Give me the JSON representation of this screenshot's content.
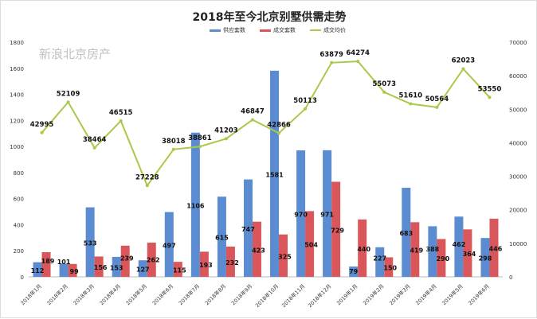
{
  "chart_data": {
    "type": "bar+line",
    "title": "2018年至今北京别墅供需走势",
    "categories": [
      "2018年1月",
      "2018年2月",
      "2018年3月",
      "2018年4月",
      "2018年5月",
      "2018年6月",
      "2018年7月",
      "2018年8月",
      "2018年9月",
      "2018年10月",
      "2018年11月",
      "2018年12月",
      "2019年1月",
      "2019年2月",
      "2019年3月",
      "2019年4月",
      "2019年5月",
      "2019年6月"
    ],
    "series": [
      {
        "name": "供应套数",
        "type": "bar",
        "axis": "left",
        "color": "#5b8bd0",
        "values": [
          112,
          101,
          533,
          153,
          127,
          497,
          1106,
          615,
          747,
          1581,
          970,
          971,
          79,
          227,
          683,
          388,
          462,
          298
        ]
      },
      {
        "name": "成交套数",
        "type": "bar",
        "axis": "left",
        "color": "#d9575a",
        "values": [
          189,
          99,
          156,
          239,
          262,
          115,
          193,
          232,
          423,
          325,
          504,
          729,
          440,
          150,
          419,
          290,
          364,
          446
        ]
      },
      {
        "name": "成交均价",
        "type": "line",
        "axis": "right",
        "color": "#a9c94a",
        "values": [
          42995,
          52109,
          38464,
          46515,
          27228,
          38018,
          38861,
          41203,
          46847,
          42866,
          50113,
          63879,
          64274,
          55073,
          51610,
          50564,
          62023,
          53550
        ]
      }
    ],
    "ylim_left": [
      0,
      1800
    ],
    "yticks_left": [
      0,
      200,
      400,
      600,
      800,
      1000,
      1200,
      1400,
      1600,
      1800
    ],
    "ylim_right": [
      0,
      70000
    ],
    "yticks_right": [
      0,
      10000,
      20000,
      30000,
      40000,
      50000,
      60000,
      70000
    ],
    "grid": false,
    "legend": "top"
  },
  "watermark": "新浪北京房产"
}
